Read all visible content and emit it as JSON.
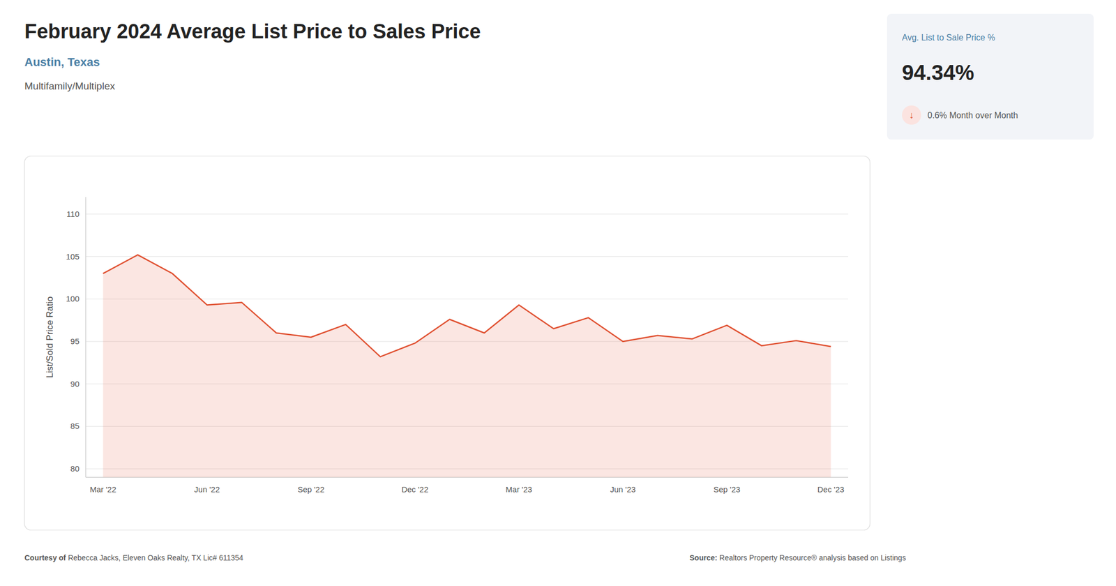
{
  "chart_data": {
    "type": "line",
    "title": "February 2024 Average List Price to Sales Price",
    "subtitle": "Austin, Texas",
    "y_label": "List/Sold Price Ratio",
    "categories": [
      "Mar '22",
      null,
      null,
      "Jun '22",
      null,
      null,
      "Sep '22",
      null,
      null,
      "Dec '22",
      null,
      null,
      "Mar '23",
      null,
      null,
      "Jun '23",
      null,
      null,
      "Sep '23",
      null,
      null,
      "Dec '23"
    ],
    "values": [
      103.0,
      105.2,
      103.0,
      99.3,
      99.6,
      96.0,
      95.5,
      97.0,
      93.2,
      94.8,
      97.6,
      96.0,
      99.3,
      96.5,
      97.8,
      95.0,
      95.7,
      95.3,
      96.9,
      94.5,
      95.1,
      94.4
    ],
    "color": "#e05030",
    "ylim": [
      79,
      112
    ],
    "yticks": [
      80,
      85,
      90,
      95,
      100,
      105,
      110
    ],
    "grid": true,
    "annotations": [
      "Multifamily/Multiplex",
      "Avg. List to Sale Price %",
      "94.34%",
      "↓",
      "0.6% Month over Month",
      "Courtesy of",
      " Rebecca Jacks, Eleven Oaks Realty, TX Lic# 611354",
      "Source:",
      " Realtors Property Resource® analysis based on Listings"
    ]
  }
}
